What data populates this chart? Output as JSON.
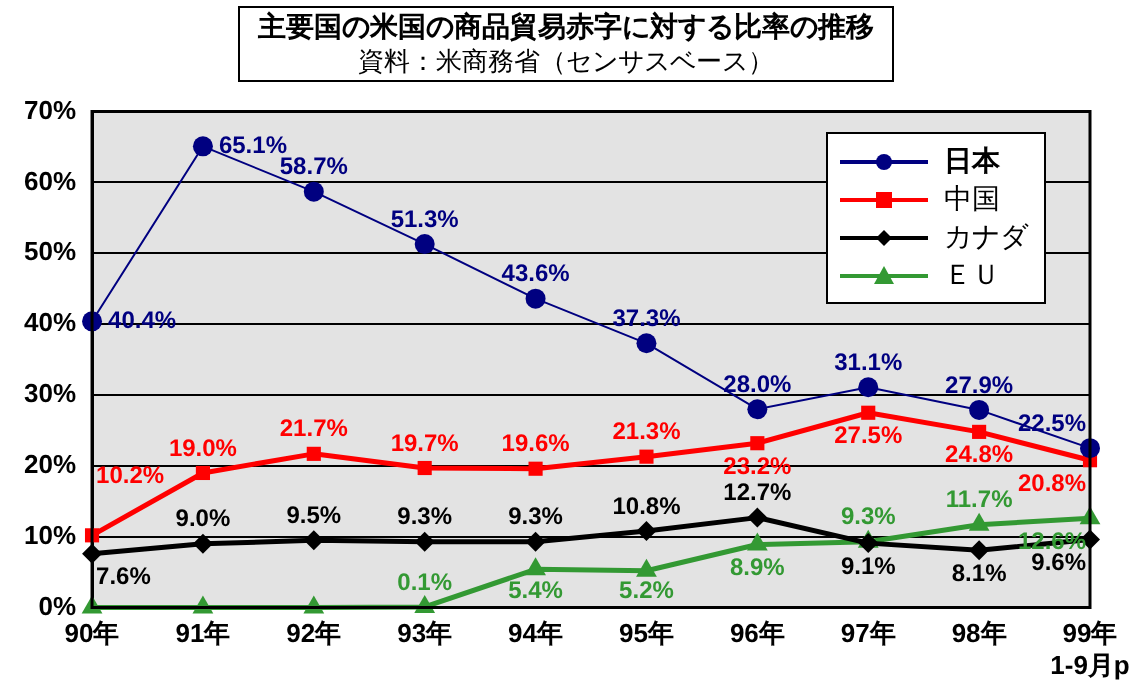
{
  "chart_data": {
    "type": "line",
    "title": "主要国の米国の商品貿易赤字に対する比率の推移",
    "subtitle": "資料：米商務省（センサスベース）",
    "categories": [
      "90年",
      "91年",
      "92年",
      "93年",
      "94年",
      "95年",
      "96年",
      "97年",
      "98年",
      "99年\n1-9月p"
    ],
    "series": [
      {
        "name": "日本",
        "color": "#000080",
        "marker": "circle",
        "values": [
          40.4,
          65.1,
          58.7,
          51.3,
          43.6,
          37.3,
          28.0,
          31.1,
          27.9,
          22.5
        ],
        "value_labels": [
          "40.4%",
          "65.1%",
          "58.7%",
          "51.3%",
          "43.6%",
          "37.3%",
          "28.0%",
          "31.1%",
          "27.9%",
          "22.5%"
        ]
      },
      {
        "name": "中国",
        "color": "#ff0000",
        "marker": "square",
        "values": [
          10.2,
          19.0,
          21.7,
          19.7,
          19.6,
          21.3,
          23.2,
          27.5,
          24.8,
          20.8
        ],
        "value_labels": [
          "10.2%",
          "19.0%",
          "21.7%",
          "19.7%",
          "19.6%",
          "21.3%",
          "23.2%",
          "27.5%",
          "24.8%",
          "20.8%"
        ]
      },
      {
        "name": "カナダ",
        "color": "#000000",
        "marker": "diamond",
        "values": [
          7.6,
          9.0,
          9.5,
          9.3,
          9.3,
          10.8,
          12.7,
          9.1,
          8.1,
          9.6
        ],
        "value_labels": [
          "7.6%",
          "9.0%",
          "9.5%",
          "9.3%",
          "9.3%",
          "10.8%",
          "12.7%",
          "9.1%",
          "8.1%",
          "9.6%"
        ]
      },
      {
        "name": "ＥＵ",
        "color": "#339933",
        "marker": "triangle",
        "values": [
          0,
          0,
          0,
          0.1,
          5.4,
          5.2,
          8.9,
          9.3,
          11.7,
          12.6
        ],
        "value_labels": [
          null,
          null,
          null,
          "0.1%",
          "5.4%",
          "5.2%",
          "8.9%",
          "9.3%",
          "11.7%",
          "12.6%"
        ]
      }
    ],
    "ylim": [
      0,
      70
    ],
    "yticks": [
      {
        "value": 0,
        "label": "0%"
      },
      {
        "value": 10,
        "label": "10%"
      },
      {
        "value": 20,
        "label": "20%"
      },
      {
        "value": 30,
        "label": "30%"
      },
      {
        "value": 40,
        "label": "40%"
      },
      {
        "value": 50,
        "label": "50%"
      },
      {
        "value": 60,
        "label": "60%"
      },
      {
        "value": 70,
        "label": "70%"
      }
    ],
    "grid": "y",
    "legend": "top right"
  }
}
